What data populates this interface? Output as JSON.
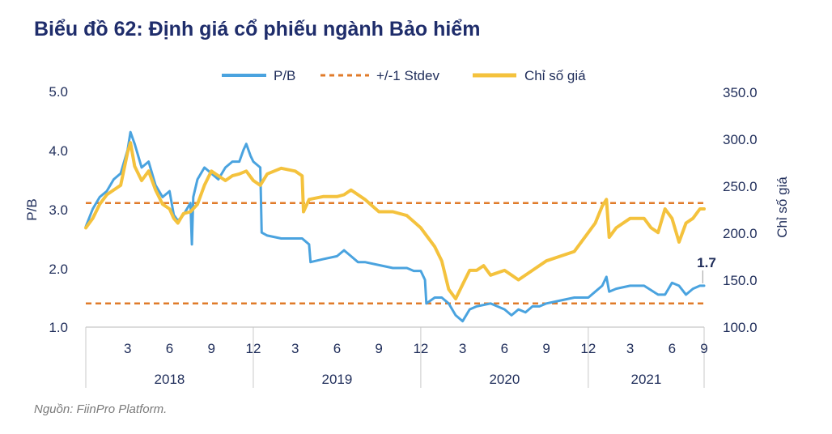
{
  "title": "Biểu đồ 62: Định giá cổ phiếu ngành Bảo hiểm",
  "source": "Nguồn: FiinPro Platform.",
  "colors": {
    "pb": "#4aa3df",
    "stdev": "#e07b2a",
    "index": "#f4c23d",
    "text": "#1f2d5a"
  },
  "chart_data": {
    "type": "line",
    "title": "Biểu đồ 62: Định giá cổ phiếu ngành Bảo hiểm",
    "ylabel_left": "P/B",
    "ylabel_right": "Chỉ số giá",
    "ylim_left": [
      1.0,
      5.0
    ],
    "ylim_right": [
      100.0,
      350.0
    ],
    "yticks_left": [
      "1.0",
      "2.0",
      "3.0",
      "4.0",
      "5.0"
    ],
    "yticks_right": [
      "100.0",
      "150.0",
      "200.0",
      "250.0",
      "300.0",
      "350.0"
    ],
    "x_range": [
      0,
      44.3
    ],
    "x_ticks": [
      {
        "x": 3,
        "label": "3"
      },
      {
        "x": 6,
        "label": "6"
      },
      {
        "x": 9,
        "label": "9"
      },
      {
        "x": 12,
        "label": "12"
      },
      {
        "x": 15,
        "label": "3"
      },
      {
        "x": 18,
        "label": "6"
      },
      {
        "x": 21,
        "label": "9"
      },
      {
        "x": 24,
        "label": "12"
      },
      {
        "x": 27,
        "label": "3"
      },
      {
        "x": 30,
        "label": "6"
      },
      {
        "x": 33,
        "label": "9"
      },
      {
        "x": 36,
        "label": "12"
      },
      {
        "x": 39,
        "label": "3"
      },
      {
        "x": 42,
        "label": "6"
      },
      {
        "x": 44.3,
        "label": "9"
      }
    ],
    "years": [
      {
        "label": "2018",
        "start": 0,
        "end": 12
      },
      {
        "label": "2019",
        "start": 12,
        "end": 24
      },
      {
        "label": "2020",
        "start": 24,
        "end": 36
      },
      {
        "label": "2021",
        "start": 36,
        "end": 44.3
      }
    ],
    "legend": [
      "P/B",
      "+/-1 Stdev",
      "Chỉ số giá"
    ],
    "stdev_bands": [
      3.1,
      1.4
    ],
    "annotation": {
      "text": "1.7",
      "x": 44.2,
      "y": 1.7
    },
    "series": [
      {
        "name": "P/B",
        "axis": "left",
        "x": [
          0,
          0.5,
          1,
          1.5,
          2,
          2.5,
          3,
          3.2,
          3.5,
          4,
          4.5,
          5,
          5.5,
          6,
          6.3,
          6.6,
          7,
          7.5,
          7.6,
          7.7,
          8,
          8.5,
          9,
          9.5,
          10,
          10.5,
          11,
          11.3,
          11.5,
          11.8,
          12,
          12.5,
          12.6,
          13,
          14,
          15,
          15.5,
          16,
          16.1,
          17,
          18,
          18.5,
          19,
          19.5,
          20,
          21,
          22,
          23,
          23.5,
          24,
          24.3,
          24.4,
          25,
          25.5,
          26,
          26.5,
          27,
          27.5,
          28,
          29,
          30,
          30.5,
          31,
          31.5,
          32,
          32.5,
          33,
          34,
          35,
          36,
          36.5,
          37,
          37.3,
          37.5,
          38,
          39,
          40,
          41,
          41.5,
          42,
          42.5,
          43,
          43.5,
          44,
          44.3
        ],
        "values": [
          2.7,
          3.0,
          3.2,
          3.3,
          3.5,
          3.6,
          4.0,
          4.3,
          4.1,
          3.7,
          3.8,
          3.4,
          3.2,
          3.3,
          2.9,
          2.8,
          2.9,
          3.1,
          2.4,
          3.2,
          3.5,
          3.7,
          3.6,
          3.5,
          3.7,
          3.8,
          3.8,
          4.0,
          4.1,
          3.9,
          3.8,
          3.7,
          2.6,
          2.55,
          2.5,
          2.5,
          2.5,
          2.4,
          2.1,
          2.15,
          2.2,
          2.3,
          2.2,
          2.1,
          2.1,
          2.05,
          2.0,
          2.0,
          1.95,
          1.95,
          1.8,
          1.4,
          1.5,
          1.5,
          1.4,
          1.2,
          1.1,
          1.3,
          1.35,
          1.4,
          1.3,
          1.2,
          1.3,
          1.25,
          1.35,
          1.35,
          1.4,
          1.45,
          1.5,
          1.5,
          1.6,
          1.7,
          1.85,
          1.6,
          1.65,
          1.7,
          1.7,
          1.55,
          1.55,
          1.75,
          1.7,
          1.55,
          1.65,
          1.7,
          1.7
        ]
      },
      {
        "name": "Chỉ số giá",
        "axis": "right",
        "x": [
          0,
          0.5,
          1,
          1.5,
          2,
          2.5,
          3,
          3.2,
          3.5,
          4,
          4.5,
          5,
          5.5,
          6,
          6.3,
          6.6,
          7,
          7.5,
          8,
          8.5,
          9,
          9.5,
          10,
          10.5,
          11,
          11.5,
          12,
          12.5,
          13,
          14,
          15,
          15.5,
          15.6,
          16,
          17,
          18,
          18.5,
          19,
          20,
          21,
          22,
          23,
          24,
          24.5,
          25,
          25.5,
          26,
          26.5,
          27,
          27.5,
          28,
          28.5,
          29,
          30,
          31,
          32,
          33,
          34,
          35,
          36,
          36.5,
          37,
          37.3,
          37.5,
          38,
          39,
          40,
          40.5,
          41,
          41.5,
          42,
          42.5,
          43,
          43.5,
          44,
          44.3
        ],
        "values": [
          205,
          215,
          230,
          240,
          245,
          250,
          285,
          295,
          270,
          255,
          265,
          245,
          230,
          225,
          215,
          210,
          220,
          222,
          230,
          250,
          265,
          260,
          255,
          260,
          262,
          265,
          255,
          250,
          262,
          268,
          265,
          260,
          222,
          235,
          238,
          238,
          240,
          245,
          235,
          222,
          222,
          218,
          205,
          195,
          185,
          170,
          140,
          130,
          145,
          160,
          160,
          165,
          155,
          160,
          150,
          160,
          170,
          175,
          180,
          200,
          210,
          228,
          235,
          195,
          205,
          215,
          215,
          205,
          200,
          225,
          215,
          190,
          210,
          215,
          225,
          225
        ]
      }
    ]
  }
}
